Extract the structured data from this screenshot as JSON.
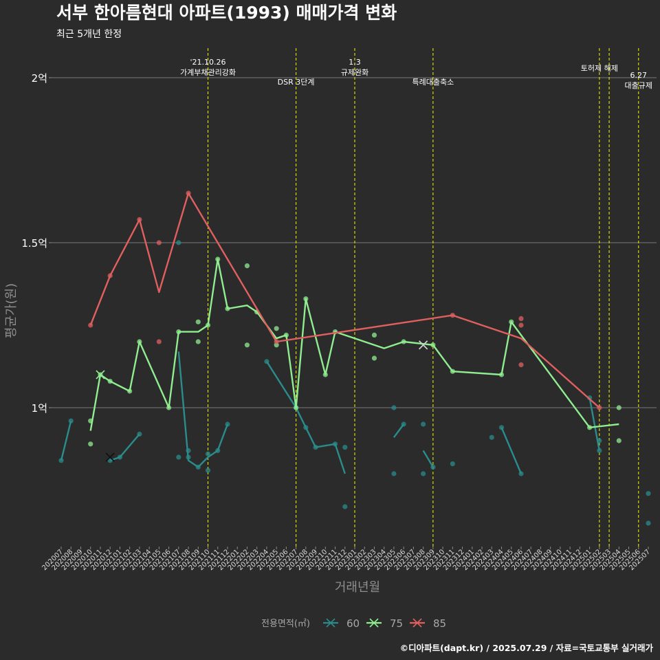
{
  "header": {
    "title": "서부 한아름현대 아파트(1993) 매매가격 변화",
    "subtitle": "최근 5개년 한정"
  },
  "footer": {
    "credit": "©디아파트(dapt.kr) / 2025.07.29 / 자료=국토교통부 실거래가"
  },
  "chart_data": {
    "type": "line",
    "xlabel": "거래년월",
    "ylabel": "평균가(원)",
    "ylim": [
      0.6,
      2.1
    ],
    "ytick_values": [
      1.0,
      1.5,
      2.0
    ],
    "ytick_labels": [
      "1억",
      "1.5억",
      "2억"
    ],
    "categories": [
      "202007",
      "202008",
      "202009",
      "202010",
      "202011",
      "202012",
      "202101",
      "202102",
      "202103",
      "202104",
      "202105",
      "202106",
      "202107",
      "202108",
      "202109",
      "202110",
      "202111",
      "202112",
      "202201",
      "202202",
      "202203",
      "202204",
      "202205",
      "202206",
      "202207",
      "202208",
      "202209",
      "202210",
      "202211",
      "202212",
      "202301",
      "202302",
      "202303",
      "202304",
      "202305",
      "202306",
      "202307",
      "202308",
      "202309",
      "202310",
      "202311",
      "202312",
      "202401",
      "202402",
      "202403",
      "202404",
      "202405",
      "202406",
      "202407",
      "202408",
      "202409",
      "202410",
      "202411",
      "202412",
      "202501",
      "202502",
      "202503",
      "202504",
      "202505",
      "202506",
      "202507"
    ],
    "grid": true,
    "legend": {
      "title": "전용면적(㎡)",
      "position": "bottom"
    },
    "series": [
      {
        "name": "60",
        "color": "#2a8c8c",
        "line": [
          [
            [
              "202007",
              0.84
            ],
            [
              "202008",
              0.96
            ]
          ],
          [
            [
              "202012",
              0.84
            ],
            [
              "202101",
              0.85
            ],
            [
              "202103",
              0.92
            ]
          ],
          [
            [
              "202107",
              1.17
            ],
            [
              "202108",
              0.84
            ],
            [
              "202109",
              0.82
            ],
            [
              "202110",
              0.85
            ],
            [
              "202111",
              0.87
            ],
            [
              "202112",
              0.95
            ]
          ],
          [
            [
              "202204",
              1.14
            ],
            [
              "202207",
              1.0
            ],
            [
              "202208",
              0.94
            ],
            [
              "202209",
              0.88
            ],
            [
              "202211",
              0.89
            ],
            [
              "202212",
              0.8
            ]
          ],
          [
            [
              "202305",
              0.91
            ],
            [
              "202306",
              0.95
            ]
          ],
          [
            [
              "202308",
              0.87
            ],
            [
              "202309",
              0.82
            ]
          ],
          [
            [
              "202404",
              0.94
            ],
            [
              "202406",
              0.8
            ]
          ],
          [
            [
              "202501",
              1.03
            ],
            [
              "202502",
              0.87
            ]
          ]
        ],
        "points": [
          [
            "202007",
            0.84
          ],
          [
            "202008",
            0.96
          ],
          [
            "202012",
            0.84
          ],
          [
            "202101",
            0.85
          ],
          [
            "202103",
            0.92
          ],
          [
            "202107",
            1.5
          ],
          [
            "202107",
            0.85
          ],
          [
            "202108",
            0.85
          ],
          [
            "202108",
            0.87
          ],
          [
            "202109",
            0.82
          ],
          [
            "202110",
            0.86
          ],
          [
            "202110",
            0.81
          ],
          [
            "202111",
            0.87
          ],
          [
            "202112",
            0.95
          ],
          [
            "202204",
            1.14
          ],
          [
            "202207",
            1.0
          ],
          [
            "202208",
            0.94
          ],
          [
            "202209",
            0.88
          ],
          [
            "202211",
            0.89
          ],
          [
            "202212",
            0.88
          ],
          [
            "202212",
            0.7
          ],
          [
            "202305",
            1.0
          ],
          [
            "202305",
            0.8
          ],
          [
            "202306",
            0.95
          ],
          [
            "202308",
            0.95
          ],
          [
            "202308",
            0.8
          ],
          [
            "202309",
            0.82
          ],
          [
            "202311",
            0.83
          ],
          [
            "202403",
            0.91
          ],
          [
            "202404",
            0.94
          ],
          [
            "202406",
            0.8
          ],
          [
            "202501",
            1.03
          ],
          [
            "202502",
            0.9
          ],
          [
            "202502",
            0.87
          ],
          [
            "202507",
            0.74
          ],
          [
            "202507",
            0.65
          ]
        ],
        "crosses": [
          [
            "202012",
            0.85
          ]
        ]
      },
      {
        "name": "75",
        "color": "#90ee90",
        "line": [
          [
            [
              "202010",
              0.93
            ],
            [
              "202011",
              1.1
            ],
            [
              "202012",
              1.08
            ],
            [
              "202102",
              1.05
            ],
            [
              "202103",
              1.2
            ],
            [
              "202106",
              1.0
            ],
            [
              "202107",
              1.23
            ],
            [
              "202109",
              1.23
            ],
            [
              "202110",
              1.25
            ],
            [
              "202111",
              1.45
            ],
            [
              "202112",
              1.3
            ],
            [
              "202202",
              1.31
            ],
            [
              "202203",
              1.29
            ],
            [
              "202205",
              1.21
            ],
            [
              "202206",
              1.22
            ],
            [
              "202207",
              1.0
            ],
            [
              "202208",
              1.33
            ],
            [
              "202210",
              1.1
            ],
            [
              "202211",
              1.23
            ],
            [
              "202304",
              1.18
            ],
            [
              "202306",
              1.2
            ],
            [
              "202309",
              1.19
            ],
            [
              "202311",
              1.11
            ],
            [
              "202404",
              1.1
            ],
            [
              "202405",
              1.26
            ],
            [
              "202501",
              0.94
            ],
            [
              "202504",
              0.95
            ]
          ]
        ],
        "points": [
          [
            "202010",
            0.96
          ],
          [
            "202010",
            0.89
          ],
          [
            "202011",
            1.1
          ],
          [
            "202012",
            1.08
          ],
          [
            "202102",
            1.05
          ],
          [
            "202103",
            1.2
          ],
          [
            "202106",
            1.0
          ],
          [
            "202107",
            1.23
          ],
          [
            "202109",
            1.26
          ],
          [
            "202109",
            1.2
          ],
          [
            "202110",
            1.25
          ],
          [
            "202111",
            1.45
          ],
          [
            "202112",
            1.3
          ],
          [
            "202202",
            1.43
          ],
          [
            "202202",
            1.19
          ],
          [
            "202203",
            1.29
          ],
          [
            "202205",
            1.24
          ],
          [
            "202205",
            1.19
          ],
          [
            "202206",
            1.22
          ],
          [
            "202207",
            1.0
          ],
          [
            "202208",
            1.33
          ],
          [
            "202210",
            1.1
          ],
          [
            "202211",
            1.23
          ],
          [
            "202303",
            1.22
          ],
          [
            "202303",
            1.15
          ],
          [
            "202306",
            1.2
          ],
          [
            "202309",
            1.19
          ],
          [
            "202311",
            1.11
          ],
          [
            "202404",
            1.1
          ],
          [
            "202405",
            1.26
          ],
          [
            "202501",
            0.94
          ],
          [
            "202504",
            1.0
          ],
          [
            "202504",
            0.9
          ]
        ],
        "crosses": [
          [
            "202011",
            1.1
          ],
          [
            "202308",
            1.19
          ]
        ]
      },
      {
        "name": "85",
        "color": "#e06060",
        "line": [
          [
            [
              "202010",
              1.25
            ],
            [
              "202012",
              1.4
            ],
            [
              "202103",
              1.57
            ],
            [
              "202105",
              1.35
            ],
            [
              "202108",
              1.65
            ],
            [
              "202205",
              1.2
            ],
            [
              "202311",
              1.28
            ],
            [
              "202406",
              1.21
            ],
            [
              "202502",
              1.0
            ]
          ]
        ],
        "points": [
          [
            "202010",
            1.25
          ],
          [
            "202012",
            1.4
          ],
          [
            "202103",
            1.57
          ],
          [
            "202105",
            1.5
          ],
          [
            "202105",
            1.2
          ],
          [
            "202108",
            1.65
          ],
          [
            "202205",
            1.2
          ],
          [
            "202311",
            1.28
          ],
          [
            "202406",
            1.27
          ],
          [
            "202406",
            1.25
          ],
          [
            "202406",
            1.13
          ],
          [
            "202502",
            1.0
          ]
        ],
        "crosses": [
          [
            "202308",
            1.19
          ]
        ]
      }
    ],
    "events": [
      {
        "x": "202110",
        "lines": [
          "'21.10.26",
          "가계부채관리강화"
        ],
        "label_y": "top"
      },
      {
        "x": "202207",
        "lines": [
          "DSR 3단계"
        ],
        "label_y": "low"
      },
      {
        "x": "202301",
        "lines": [
          "1.3",
          "규제완화"
        ],
        "label_y": "top"
      },
      {
        "x": "202309",
        "lines": [
          "특례대출축소"
        ],
        "label_y": "low"
      },
      {
        "x": "202502",
        "lines": [
          "토허제 해제"
        ],
        "label_y": "mid"
      },
      {
        "x": "202503",
        "lines": [],
        "label_y": "none"
      },
      {
        "x": "202506",
        "lines": [
          "6.27",
          "대출규제"
        ],
        "label_y": "right"
      }
    ]
  }
}
